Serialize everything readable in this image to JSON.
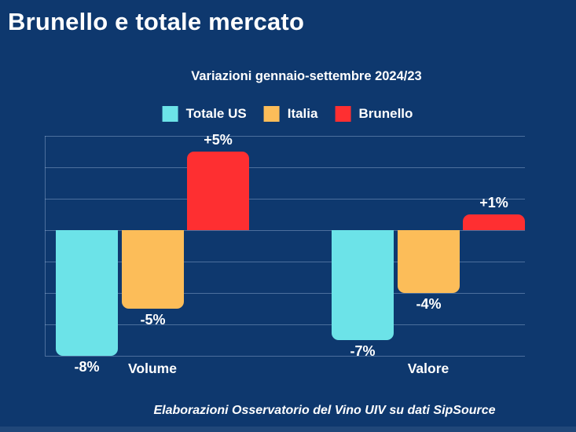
{
  "page": {
    "title": "Brunello e totale mercato",
    "subtitle": "Variazioni gennaio-settembre 2024/23",
    "footer": "Elaborazioni Osservatorio del Vino UIV su dati SipSource"
  },
  "colors": {
    "background": "#0e386e",
    "totale_us": "#6ce3e8",
    "italia": "#fcbd59",
    "brunello": "#fe2f31",
    "gridline": "rgba(170,196,228,0.40)",
    "text": "#ffffff"
  },
  "legend": [
    {
      "label": "Totale US",
      "color": "#6ce3e8"
    },
    {
      "label": "Italia",
      "color": "#fcbd59"
    },
    {
      "label": "Brunello",
      "color": "#fe2f31"
    }
  ],
  "chart_data": {
    "type": "bar",
    "title": "Variazioni gennaio-settembre 2024/23",
    "categories": [
      "Volume",
      "Valore"
    ],
    "series": [
      {
        "name": "Totale US",
        "color": "#6ce3e8",
        "values": [
          -8,
          -7
        ],
        "labels": [
          "-8%",
          "-7%"
        ]
      },
      {
        "name": "Italia",
        "color": "#fcbd59",
        "values": [
          -5,
          -4
        ],
        "labels": [
          "-5%",
          "-4%"
        ]
      },
      {
        "name": "Brunello",
        "color": "#fe2f31",
        "values": [
          5,
          1
        ],
        "labels": [
          "+5%",
          "+1%"
        ]
      }
    ],
    "xlabel": "",
    "ylabel": "",
    "ylim": [
      -8,
      6
    ],
    "grid_step": 2,
    "grid": true,
    "legend_position": "top",
    "value_suffix": "%"
  }
}
